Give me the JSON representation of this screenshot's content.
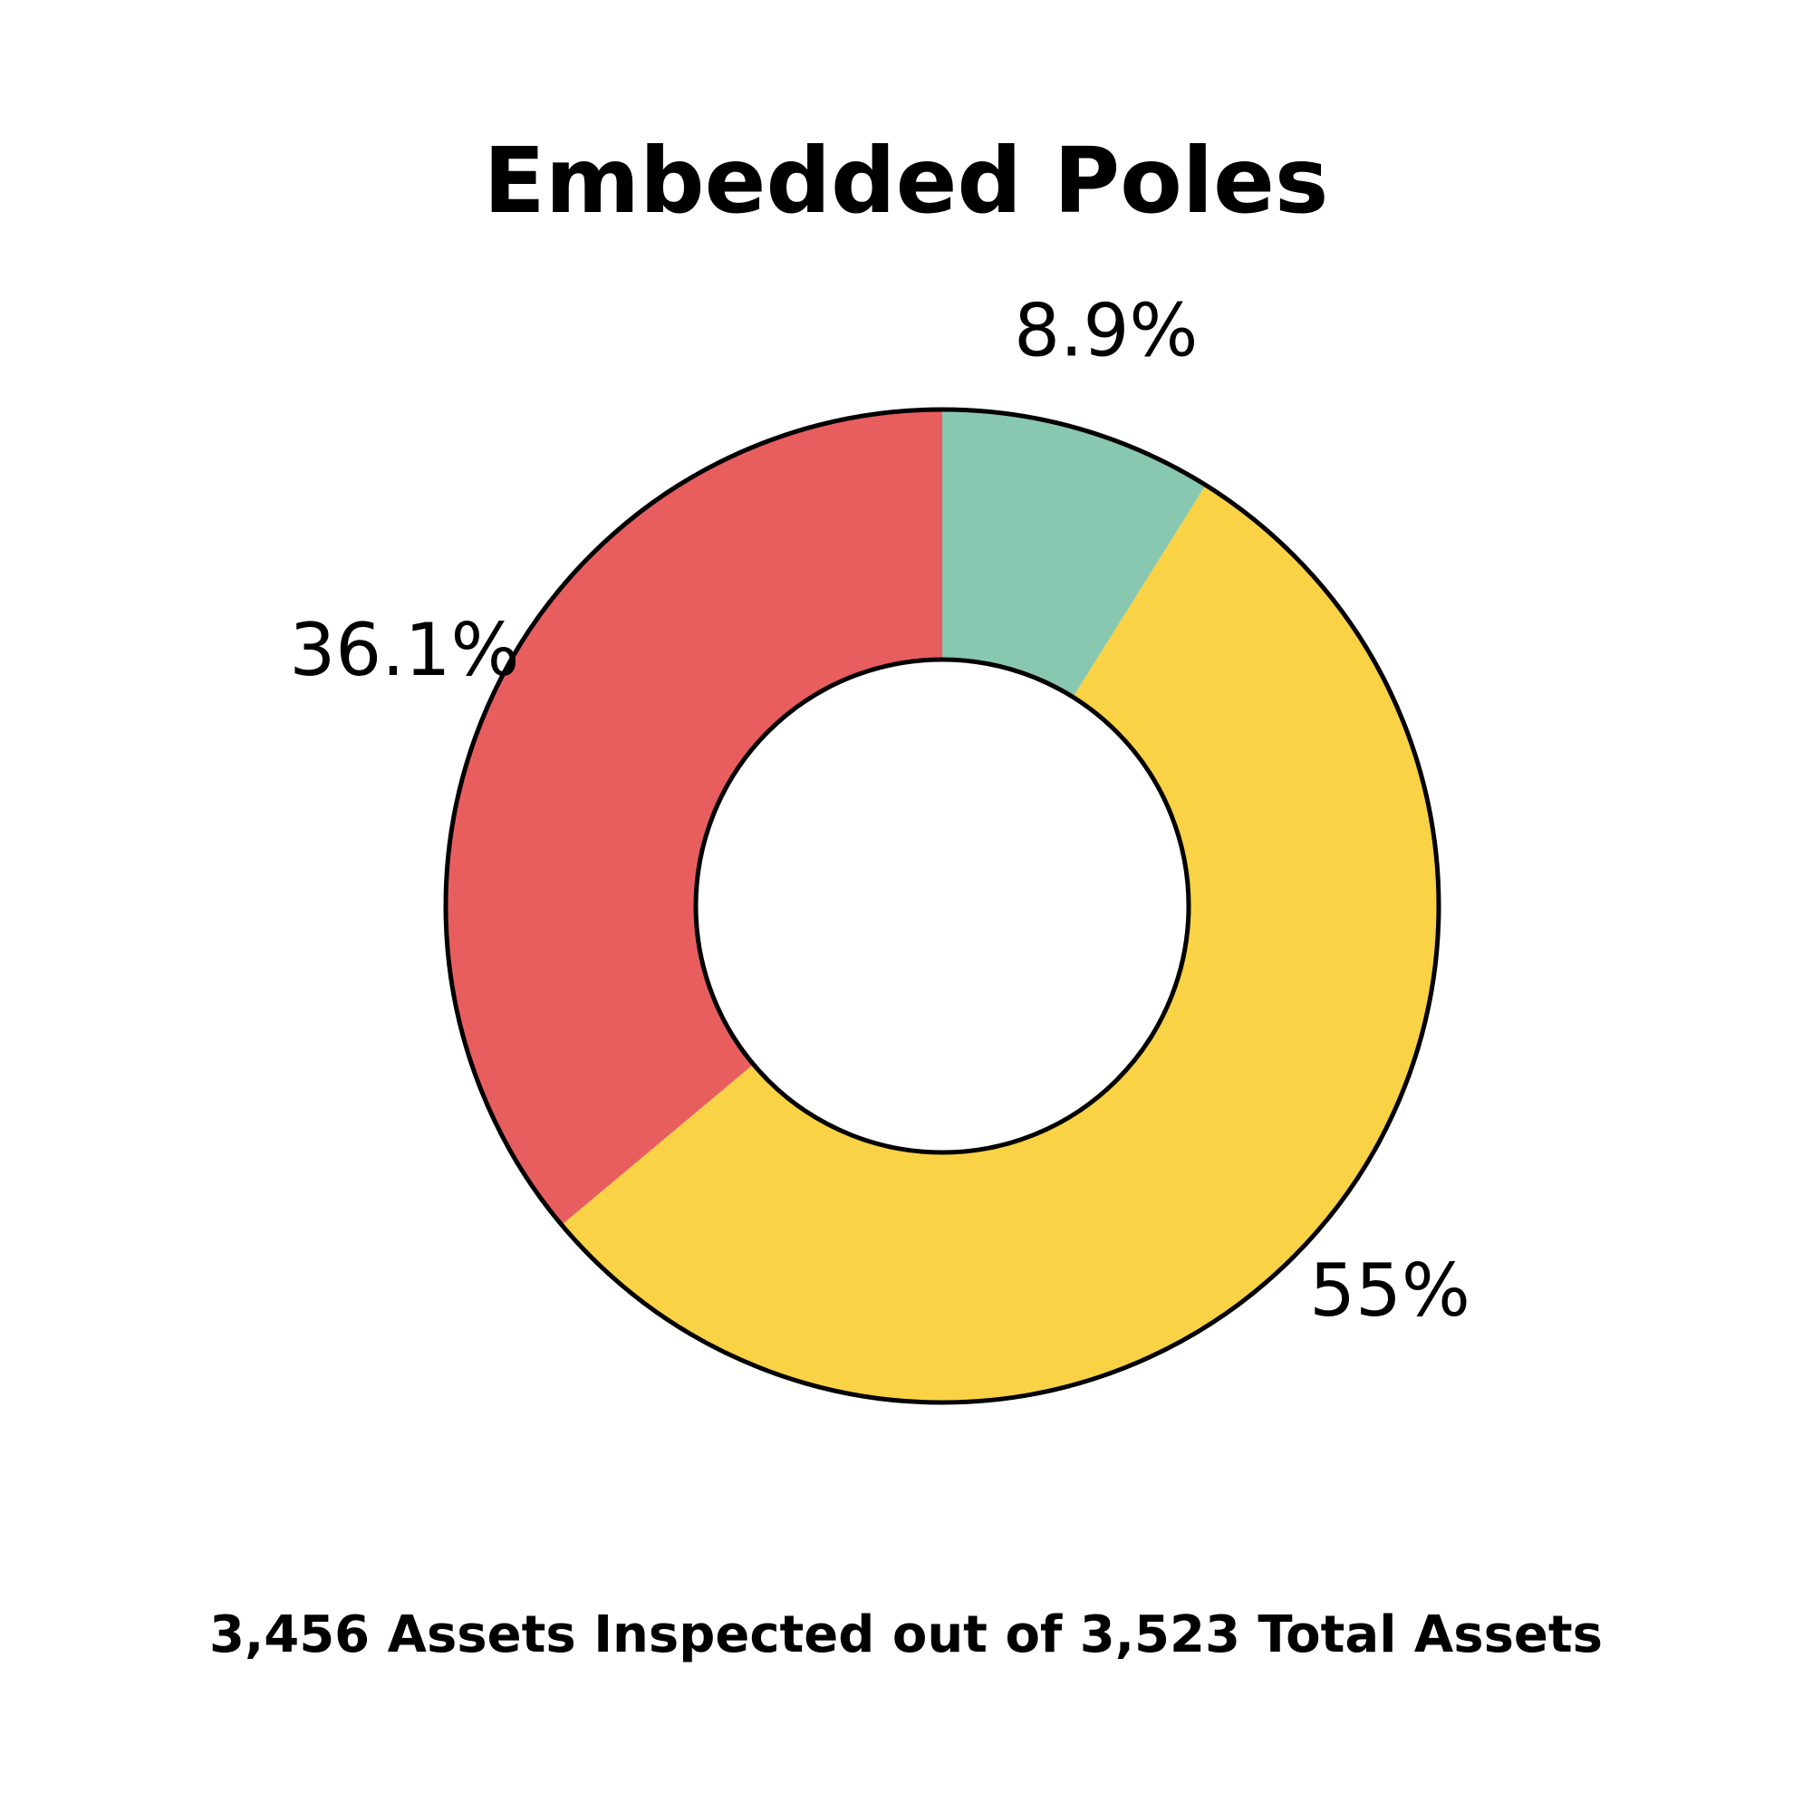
{
  "chart_data": {
    "type": "pie",
    "title": "Embedded Poles",
    "subtitle": "3,456 Assets Inspected out of 3,523 Total Assets",
    "slices": [
      {
        "value": 8.9,
        "label": "8.9%",
        "color": "#88c8b0"
      },
      {
        "value": 55,
        "label": "55%",
        "color": "#f9d245"
      },
      {
        "value": 36.1,
        "label": "36.1%",
        "color": "#e85e5e"
      }
    ],
    "donut": true,
    "legend": "none"
  }
}
